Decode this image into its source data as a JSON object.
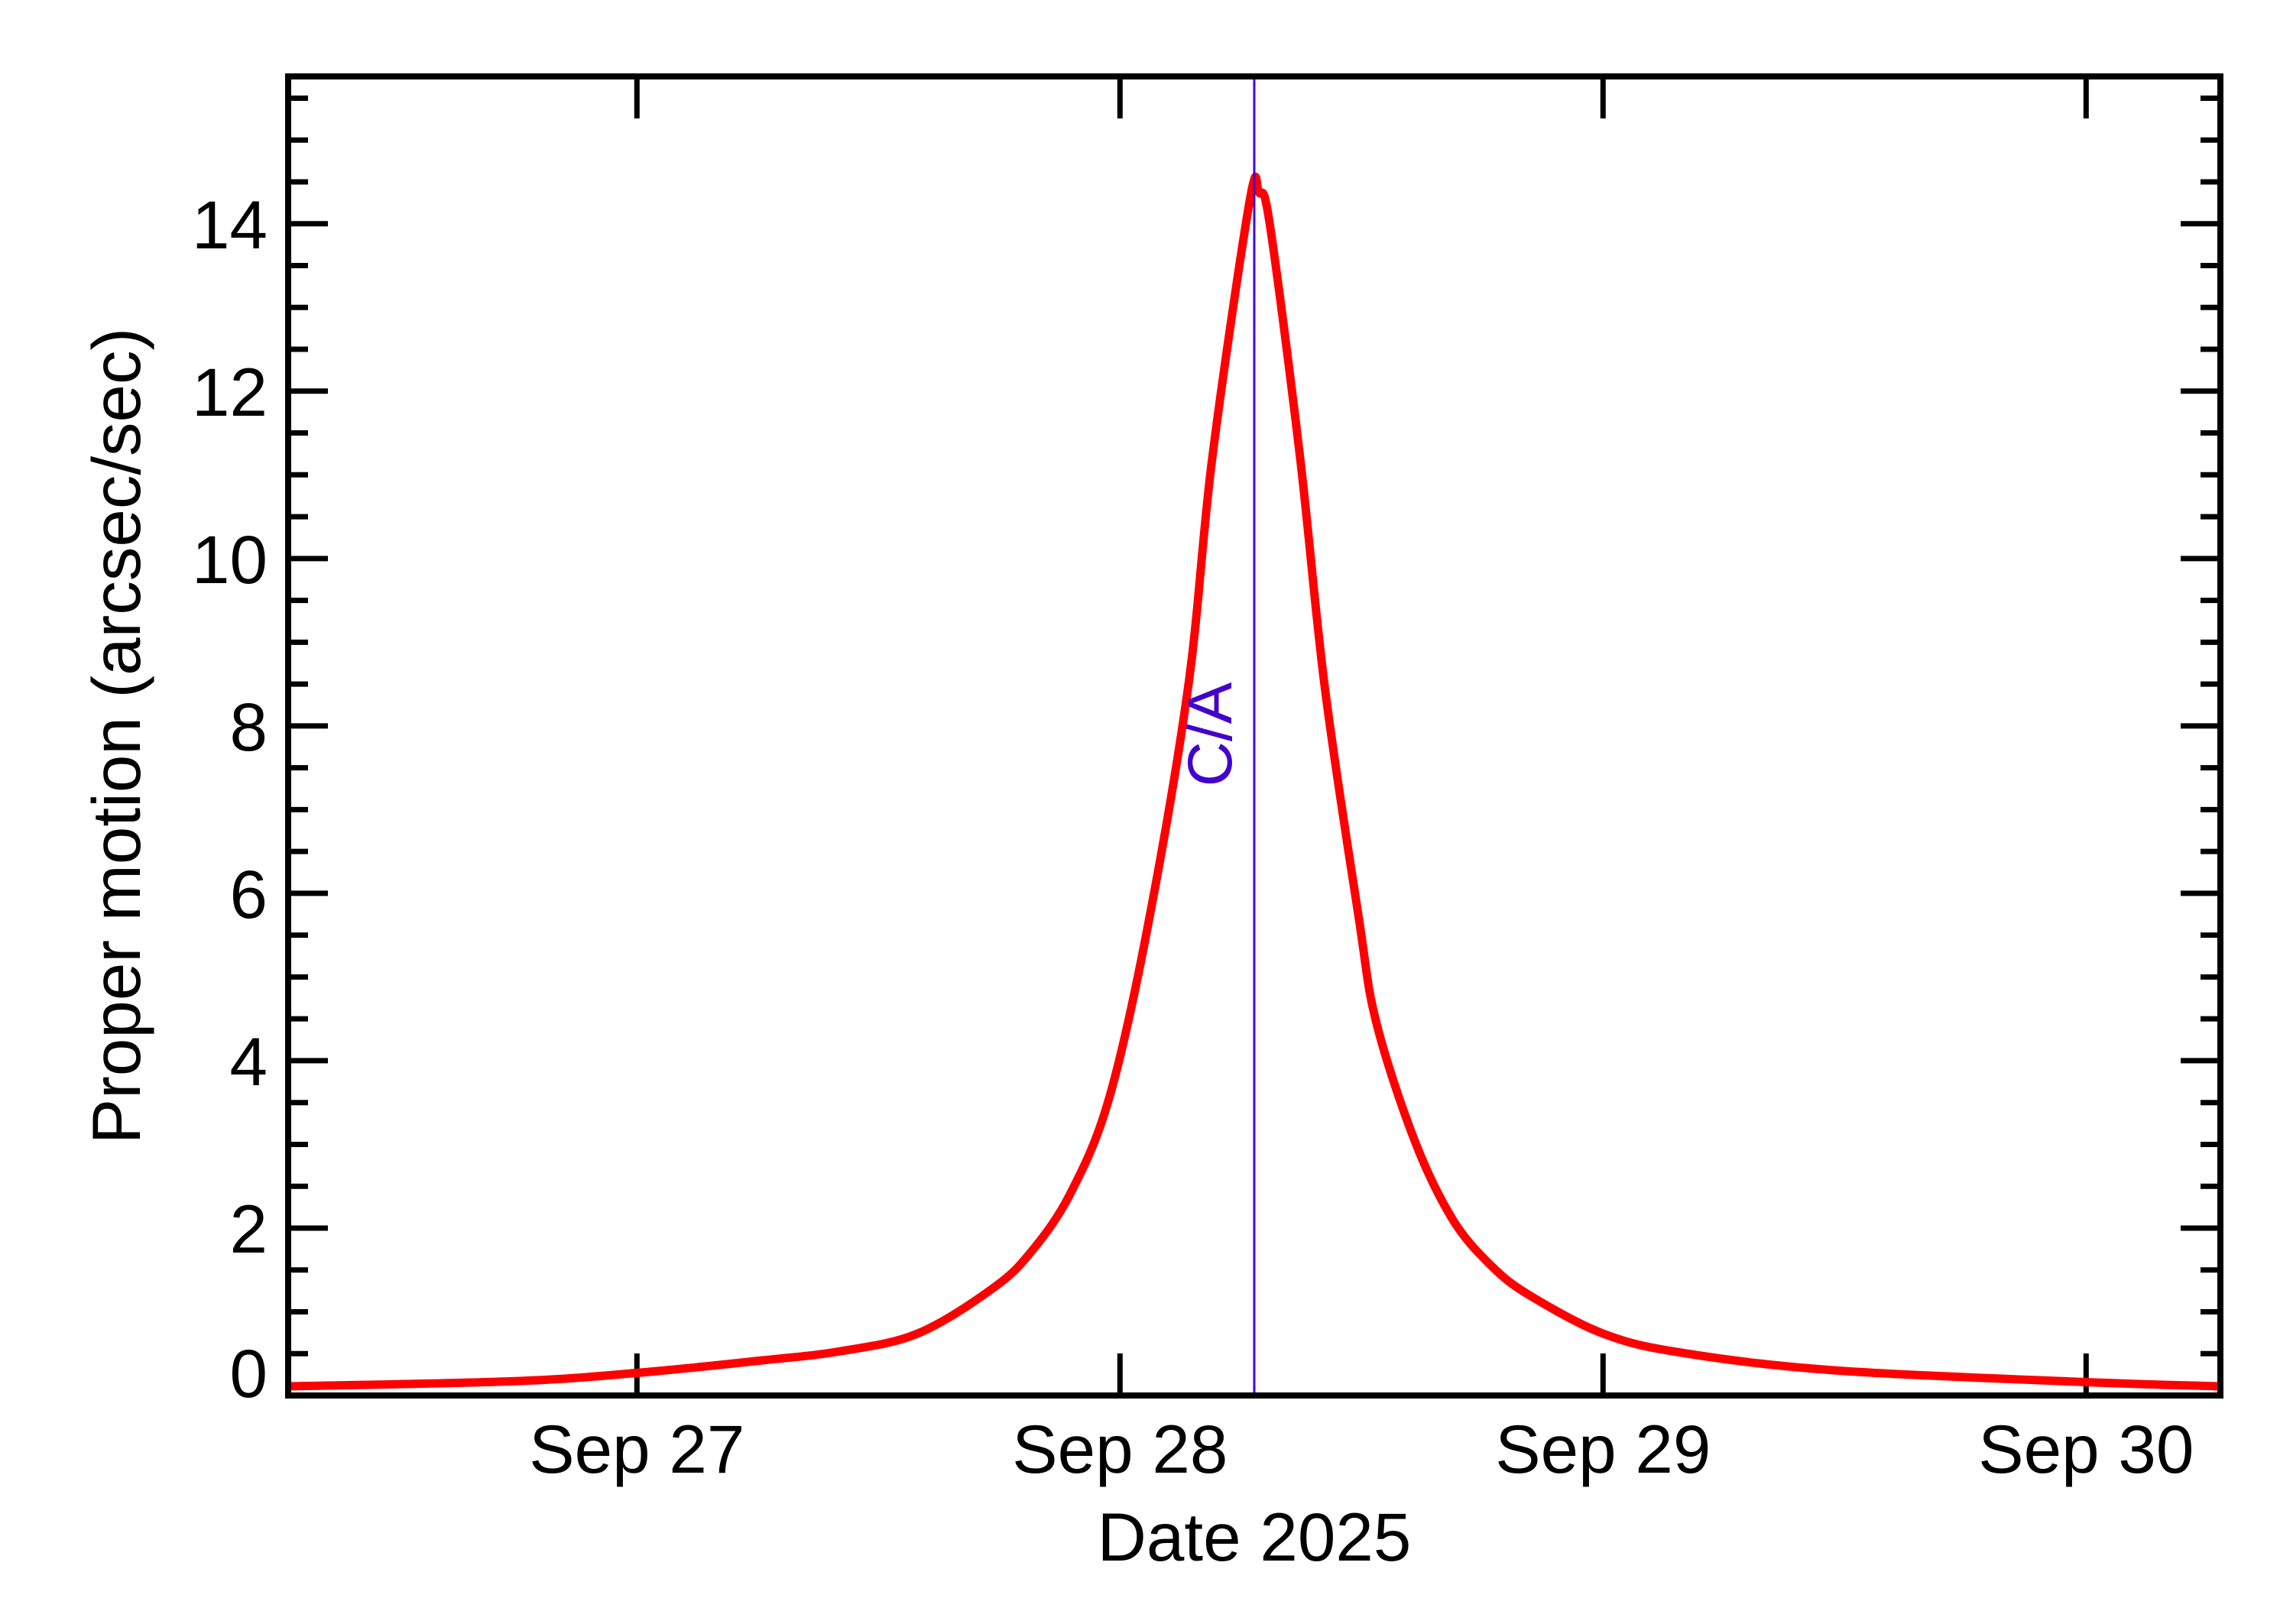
{
  "colors": {
    "background": "#ffffff",
    "axis": "#000000",
    "curve": "#ff0000",
    "ca_line": "#4400cc"
  },
  "chart_data": {
    "type": "line",
    "title": "",
    "xlabel": "Date 2025",
    "ylabel": "Proper motion (arcsec/sec)",
    "x_unit": "day of September 2025 (fractional)",
    "xlim": [
      26.278,
      30.278
    ],
    "ylim": [
      0,
      15.76
    ],
    "grid": false,
    "legend": null,
    "x_ticks": [
      {
        "value": 27,
        "label": "Sep 27"
      },
      {
        "value": 28,
        "label": "Sep 28"
      },
      {
        "value": 29,
        "label": "Sep 29"
      },
      {
        "value": 30,
        "label": "Sep 30"
      }
    ],
    "y_ticks": [
      {
        "value": 0,
        "label": "0"
      },
      {
        "value": 2,
        "label": "2"
      },
      {
        "value": 4,
        "label": "4"
      },
      {
        "value": 6,
        "label": "6"
      },
      {
        "value": 8,
        "label": "8"
      },
      {
        "value": 10,
        "label": "10"
      },
      {
        "value": 12,
        "label": "12"
      },
      {
        "value": 14,
        "label": "14"
      }
    ],
    "y_minor_step": 0.5,
    "annotations": [
      {
        "type": "vline",
        "x": 28.278,
        "label": "C/A",
        "color": "#4400cc"
      }
    ],
    "series": [
      {
        "name": "Proper motion",
        "color": "#ff0000",
        "x": [
          26.278,
          26.742,
          27.0,
          27.26,
          27.422,
          27.581,
          27.739,
          27.818,
          27.897,
          27.976,
          28.055,
          28.141,
          28.191,
          28.269,
          28.288,
          28.31,
          28.373,
          28.424,
          28.494,
          28.53,
          28.609,
          28.688,
          28.767,
          28.847,
          29.0,
          29.163,
          29.48,
          30.0,
          30.278
        ],
        "values": [
          0.11,
          0.17,
          0.27,
          0.42,
          0.53,
          0.74,
          1.29,
          1.73,
          2.41,
          3.52,
          5.53,
          8.46,
          11.2,
          14.29,
          14.37,
          14.0,
          11.2,
          8.46,
          5.72,
          4.47,
          3.06,
          2.11,
          1.56,
          1.2,
          0.74,
          0.51,
          0.3,
          0.16,
          0.11
        ]
      }
    ]
  }
}
